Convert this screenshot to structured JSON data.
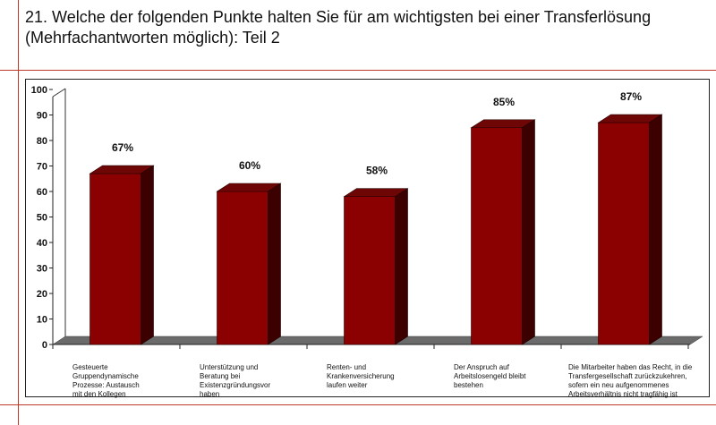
{
  "title": {
    "line1": "21. Welche der folgenden Punkte halten Sie für am wichtigsten bei einer Transferlösung",
    "line2": "(Mehrfachantworten möglich): Teil 2"
  },
  "colors": {
    "bar_front": "#8b0000",
    "bar_top": "#6e0606",
    "bar_side": "#3d0000",
    "floor": "#6b6b6b",
    "rules": "#c0392b"
  },
  "chart_data": {
    "type": "bar",
    "style": "3d",
    "categories": [
      "Gesteuerte Gruppendynamische Prozesse: Austausch mit den Kollegen",
      "Unterstützung und Beratung bei Existenzgründungsvorhaben",
      "Renten- und Krankenversicherung laufen weiter",
      "Der Anspruch auf Arbeitslosengeld bleibt bestehen",
      "Die Mitarbeiter haben das Recht, in die Transfergesellschaft zurückzukehren, sofern ein neu aufgenommenes Arbeitsverhältnis nicht tragfähig ist"
    ],
    "category_lines": [
      [
        "Gesteuerte",
        "Gruppendynamische",
        "Prozesse: Austausch",
        "mit den Kollegen"
      ],
      [
        "Unterstützung und",
        "Beratung bei",
        "Existenzgründungsvor",
        "haben"
      ],
      [
        "Renten- und",
        "Krankenversicherung",
        "laufen weiter"
      ],
      [
        "Der Anspruch auf",
        "Arbeitslosengeld bleibt",
        "bestehen"
      ],
      [
        "Die Mitarbeiter haben das Recht, in die",
        "Transfergesellschaft zurückzukehren,",
        "sofern ein neu aufgenommenes",
        "Arbeitsverhältnis nicht tragfähig ist"
      ]
    ],
    "values": [
      67,
      60,
      58,
      85,
      87
    ],
    "data_labels": [
      "67%",
      "60%",
      "58%",
      "85%",
      "87%"
    ],
    "ylim": [
      0,
      100
    ],
    "yticks": [
      "0",
      "10",
      "20",
      "30",
      "40",
      "50",
      "60",
      "70",
      "80",
      "90",
      "100"
    ],
    "grid": false,
    "legend": "none"
  }
}
